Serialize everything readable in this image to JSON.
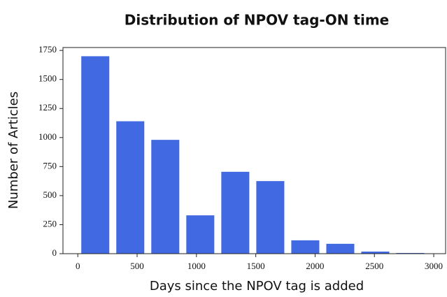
{
  "chart_data": {
    "type": "histogram",
    "title": "Distribution of NPOV tag-ON time",
    "xlabel": "Days since the NPOV tag is added",
    "ylabel": "Number of Articles",
    "bins": [
      0,
      295,
      590,
      885,
      1180,
      1475,
      1770,
      2065,
      2360,
      2655,
      2950
    ],
    "values": [
      1700,
      1140,
      980,
      330,
      705,
      625,
      115,
      85,
      18,
      6
    ],
    "color": "#4169e1",
    "rwidth": 0.8,
    "xlim": [
      -125,
      3100
    ],
    "xticks": [
      0,
      500,
      1000,
      1500,
      2000,
      2500,
      3000
    ],
    "ylim": [
      0,
      1775
    ],
    "yticks": [
      0,
      250,
      500,
      750,
      1000,
      1250,
      1500,
      1750
    ]
  }
}
